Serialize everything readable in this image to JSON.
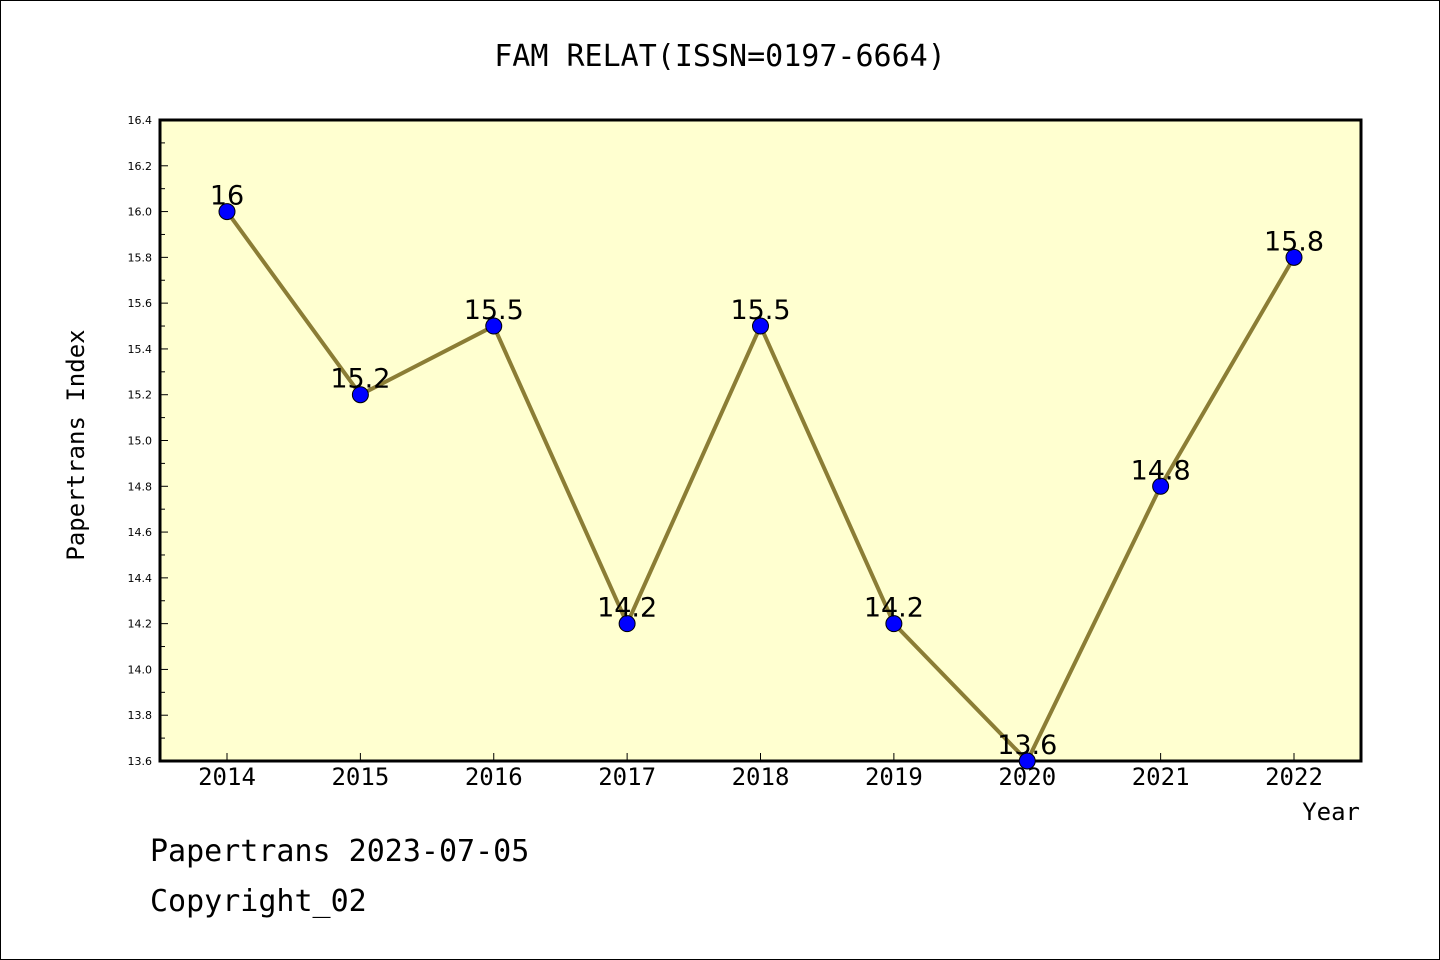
{
  "chart_data": {
    "type": "line",
    "title": "FAM RELAT(ISSN=0197-6664)",
    "xlabel": "Year",
    "ylabel": "Papertrans Index",
    "categories": [
      "2014",
      "2015",
      "2016",
      "2017",
      "2018",
      "2019",
      "2020",
      "2021",
      "2022"
    ],
    "series": [
      {
        "values": [
          16,
          15.2,
          15.5,
          14.2,
          15.5,
          14.2,
          13.6,
          14.8,
          15.8
        ],
        "data_labels": [
          "16",
          "15.2",
          "15.5",
          "14.2",
          "15.5",
          "14.2",
          "13.6",
          "14.8",
          "15.8"
        ]
      }
    ],
    "ylim": [
      13.6,
      16.4
    ],
    "yticks": [
      "13.6",
      "13.8",
      "14.0",
      "14.2",
      "14.4",
      "14.6",
      "14.8",
      "15.0",
      "15.2",
      "15.4",
      "15.6",
      "15.8",
      "16.0",
      "16.2",
      "16.4"
    ],
    "grid": false,
    "colors": {
      "plot_background": "#ffffd0",
      "line": "#8b7d35",
      "marker": "#0000ff"
    }
  },
  "footer": {
    "line1": "Papertrans 2023-07-05",
    "line2": "Copyright_02"
  }
}
